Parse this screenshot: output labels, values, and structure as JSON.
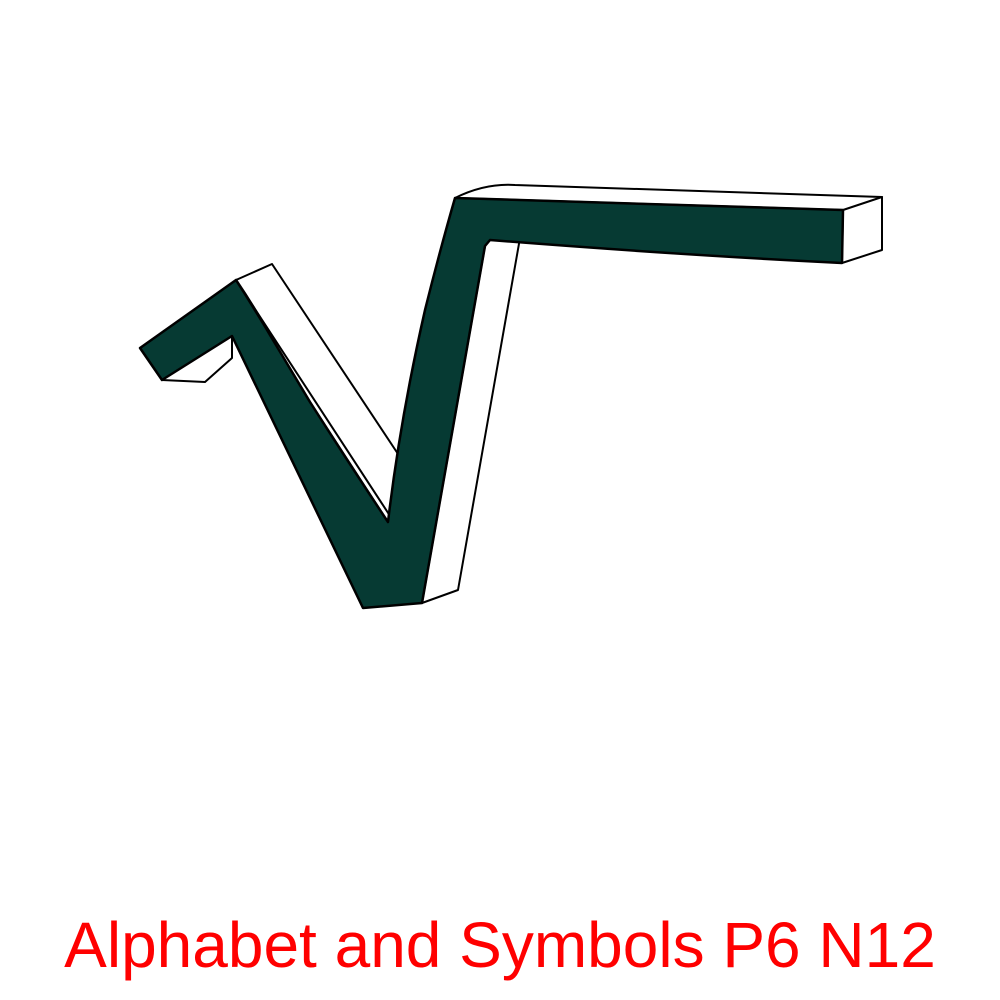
{
  "figure": {
    "symbol_name": "square-root-3d-symbol",
    "face_color": "#063a33",
    "side_color": "#ffffff",
    "outline_color": "#000000"
  },
  "caption": {
    "text": "Alphabet and Symbols P6 N12",
    "color": "#ff0000"
  }
}
